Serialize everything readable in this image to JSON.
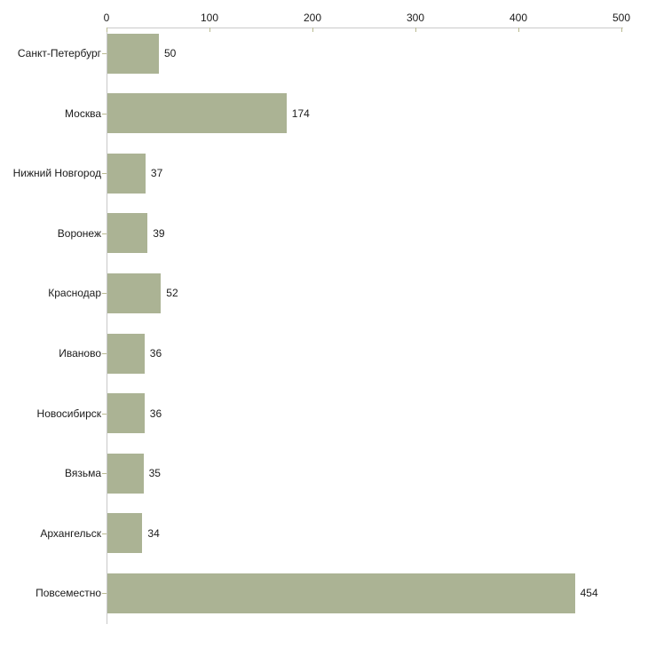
{
  "chart_data": {
    "type": "bar",
    "orientation": "horizontal",
    "title": "",
    "xlabel": "",
    "ylabel": "",
    "categories": [
      "Санкт-Петербург",
      "Москва",
      "Нижний Новгород",
      "Воронеж",
      "Краснодар",
      "Иваново",
      "Новосибирск",
      "Вязьма",
      "Архангельск",
      "Повсеместно"
    ],
    "values": [
      50,
      174,
      37,
      39,
      52,
      36,
      36,
      35,
      34,
      454
    ],
    "value_labels": [
      "50",
      "174",
      "37",
      "39",
      "52",
      "36",
      "36",
      "35",
      "34",
      "454"
    ],
    "xlim": [
      0,
      500
    ],
    "x_ticks": [
      0,
      100,
      200,
      300,
      400,
      500
    ],
    "x_tick_labels": [
      "0",
      "100",
      "200",
      "300",
      "400",
      "500"
    ],
    "grid": false,
    "legend": false,
    "axis_position": "top",
    "colors": {
      "bar_fill": "#abb394",
      "axis_line": "#c9c9c9",
      "tick_mark": "#b9ba90",
      "text": "#1a1a1a",
      "background": "#ffffff"
    }
  }
}
